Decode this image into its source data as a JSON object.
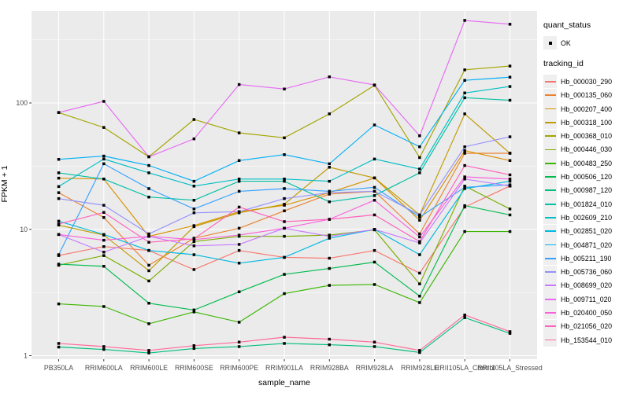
{
  "figure": {
    "panel_bg": "#EBEBEB",
    "grid_color": "#FFFFFF",
    "point_color": "#000000",
    "tick_color": "#333333",
    "axis_text_color": "#4D4D4D"
  },
  "axes": {
    "x_title": "sample_name",
    "y_title": "FPKM + 1"
  },
  "legend": {
    "quant_status_title": "quant_status",
    "quant_status_items": [
      "OK"
    ],
    "tracking_id_title": "tracking_id"
  },
  "chart_data": {
    "type": "line",
    "title": "",
    "xlabel": "sample_name",
    "ylabel": "FPKM + 1",
    "yscale": "log10",
    "y_ticks": [
      1,
      10,
      100
    ],
    "y_minor_ticks": [
      3.1623,
      31.623,
      316.23
    ],
    "ylim_approx": [
      0.95,
      530
    ],
    "grid": true,
    "legend_position": "right",
    "marker": "small black point (quant_status = OK) on every observation",
    "categories": [
      "PB350LA",
      "RRIM600LA",
      "RRIM600LE",
      "RRIM600SE",
      "RRIM600PE",
      "RRIM901LA",
      "RRIM928BA",
      "RRIM928LA",
      "RRIM928LE",
      "RRII105LA_Control",
      "RRII105LA_Stressed"
    ],
    "series": [
      {
        "name": "Hb_000030_290",
        "color": "#F8766D",
        "values": [
          6.2,
          7.3,
          6.8,
          4.8,
          6.8,
          6.0,
          5.9,
          6.8,
          4.5,
          15,
          22
        ]
      },
      {
        "name": "Hb_000135_060",
        "color": "#EA8331",
        "values": [
          19.5,
          12.4,
          5.2,
          8.5,
          10.2,
          14,
          19,
          20,
          9.2,
          40,
          40
        ]
      },
      {
        "name": "Hb_000207_400",
        "color": "#D89000",
        "values": [
          25.4,
          25,
          8.8,
          10.7,
          13.8,
          15.5,
          19.5,
          25.5,
          11.8,
          42,
          35
        ]
      },
      {
        "name": "Hb_000318_100",
        "color": "#C09B00",
        "values": [
          10.8,
          9.0,
          4.7,
          10.5,
          13.5,
          15.8,
          31,
          25.5,
          13,
          82,
          40
        ]
      },
      {
        "name": "Hb_000368_010",
        "color": "#A3A500",
        "values": [
          84,
          64,
          37.5,
          74,
          58,
          53,
          82,
          138,
          37,
          183,
          196
        ]
      },
      {
        "name": "Hb_000446_030",
        "color": "#7CAE00",
        "values": [
          5.2,
          6.2,
          3.9,
          8.0,
          8.8,
          8.8,
          9.0,
          9.9,
          3.7,
          22,
          14.5
        ]
      },
      {
        "name": "Hb_000483_250",
        "color": "#39B600",
        "values": [
          2.57,
          2.45,
          1.79,
          2.22,
          1.84,
          3.1,
          3.6,
          3.66,
          2.63,
          9.6,
          9.6
        ]
      },
      {
        "name": "Hb_000506_120",
        "color": "#00BB4E",
        "values": [
          5.3,
          5.1,
          2.6,
          2.3,
          3.2,
          4.4,
          4.9,
          5.5,
          2.96,
          15.4,
          13
        ]
      },
      {
        "name": "Hb_000987_120",
        "color": "#00BF7D",
        "values": [
          1.17,
          1.12,
          1.05,
          1.14,
          1.18,
          1.25,
          1.22,
          1.18,
          1.06,
          2.0,
          1.5
        ]
      },
      {
        "name": "Hb_001824_010",
        "color": "#00C1A3",
        "values": [
          28,
          25,
          18,
          17,
          24,
          24,
          16.5,
          18.5,
          28,
          110,
          105
        ]
      },
      {
        "name": "Hb_002609_210",
        "color": "#00BFC4",
        "values": [
          21.8,
          36,
          28,
          22,
          25,
          25,
          24,
          36,
          30,
          120,
          135
        ]
      },
      {
        "name": "Hb_002851_020",
        "color": "#00BAE0",
        "values": [
          11.6,
          9.1,
          6.8,
          6.3,
          5.4,
          6.0,
          8.5,
          10,
          6.3,
          21,
          24
        ]
      },
      {
        "name": "Hb_004871_020",
        "color": "#00B0F6",
        "values": [
          35.8,
          38,
          32,
          24,
          35,
          39,
          33,
          67,
          45,
          151,
          160
        ]
      },
      {
        "name": "Hb_005211_190",
        "color": "#35A2FF",
        "values": [
          6.3,
          33,
          21,
          14.5,
          20,
          21,
          20,
          21.5,
          12.5,
          21.5,
          22.5
        ]
      },
      {
        "name": "Hb_005736_060",
        "color": "#9590FF",
        "values": [
          17.5,
          15.5,
          9.2,
          13.5,
          13.8,
          17.5,
          19.5,
          20,
          13,
          45,
          54
        ]
      },
      {
        "name": "Hb_008699_020",
        "color": "#C77CFF",
        "values": [
          9.1,
          6.6,
          8.8,
          7.4,
          7.6,
          10.2,
          8.8,
          10,
          7.8,
          25,
          22
        ]
      },
      {
        "name": "Hb_009711_020",
        "color": "#E76BF3",
        "values": [
          84,
          103,
          37.5,
          52,
          140,
          129,
          161,
          139,
          55,
          450,
          420
        ]
      },
      {
        "name": "Hb_020400_050",
        "color": "#FA62DB",
        "values": [
          9.1,
          8.2,
          8.8,
          8.3,
          9.0,
          10.2,
          12,
          17,
          8.7,
          26,
          25
        ]
      },
      {
        "name": "Hb_021056_020",
        "color": "#FF62BC",
        "values": [
          11.0,
          13.6,
          7.9,
          8.4,
          15,
          11.5,
          12,
          13,
          8.0,
          32,
          27
        ]
      },
      {
        "name": "Hb_153544_010",
        "color": "#FF6A98",
        "values": [
          1.25,
          1.18,
          1.1,
          1.2,
          1.28,
          1.4,
          1.35,
          1.28,
          1.1,
          2.1,
          1.55
        ]
      }
    ]
  }
}
